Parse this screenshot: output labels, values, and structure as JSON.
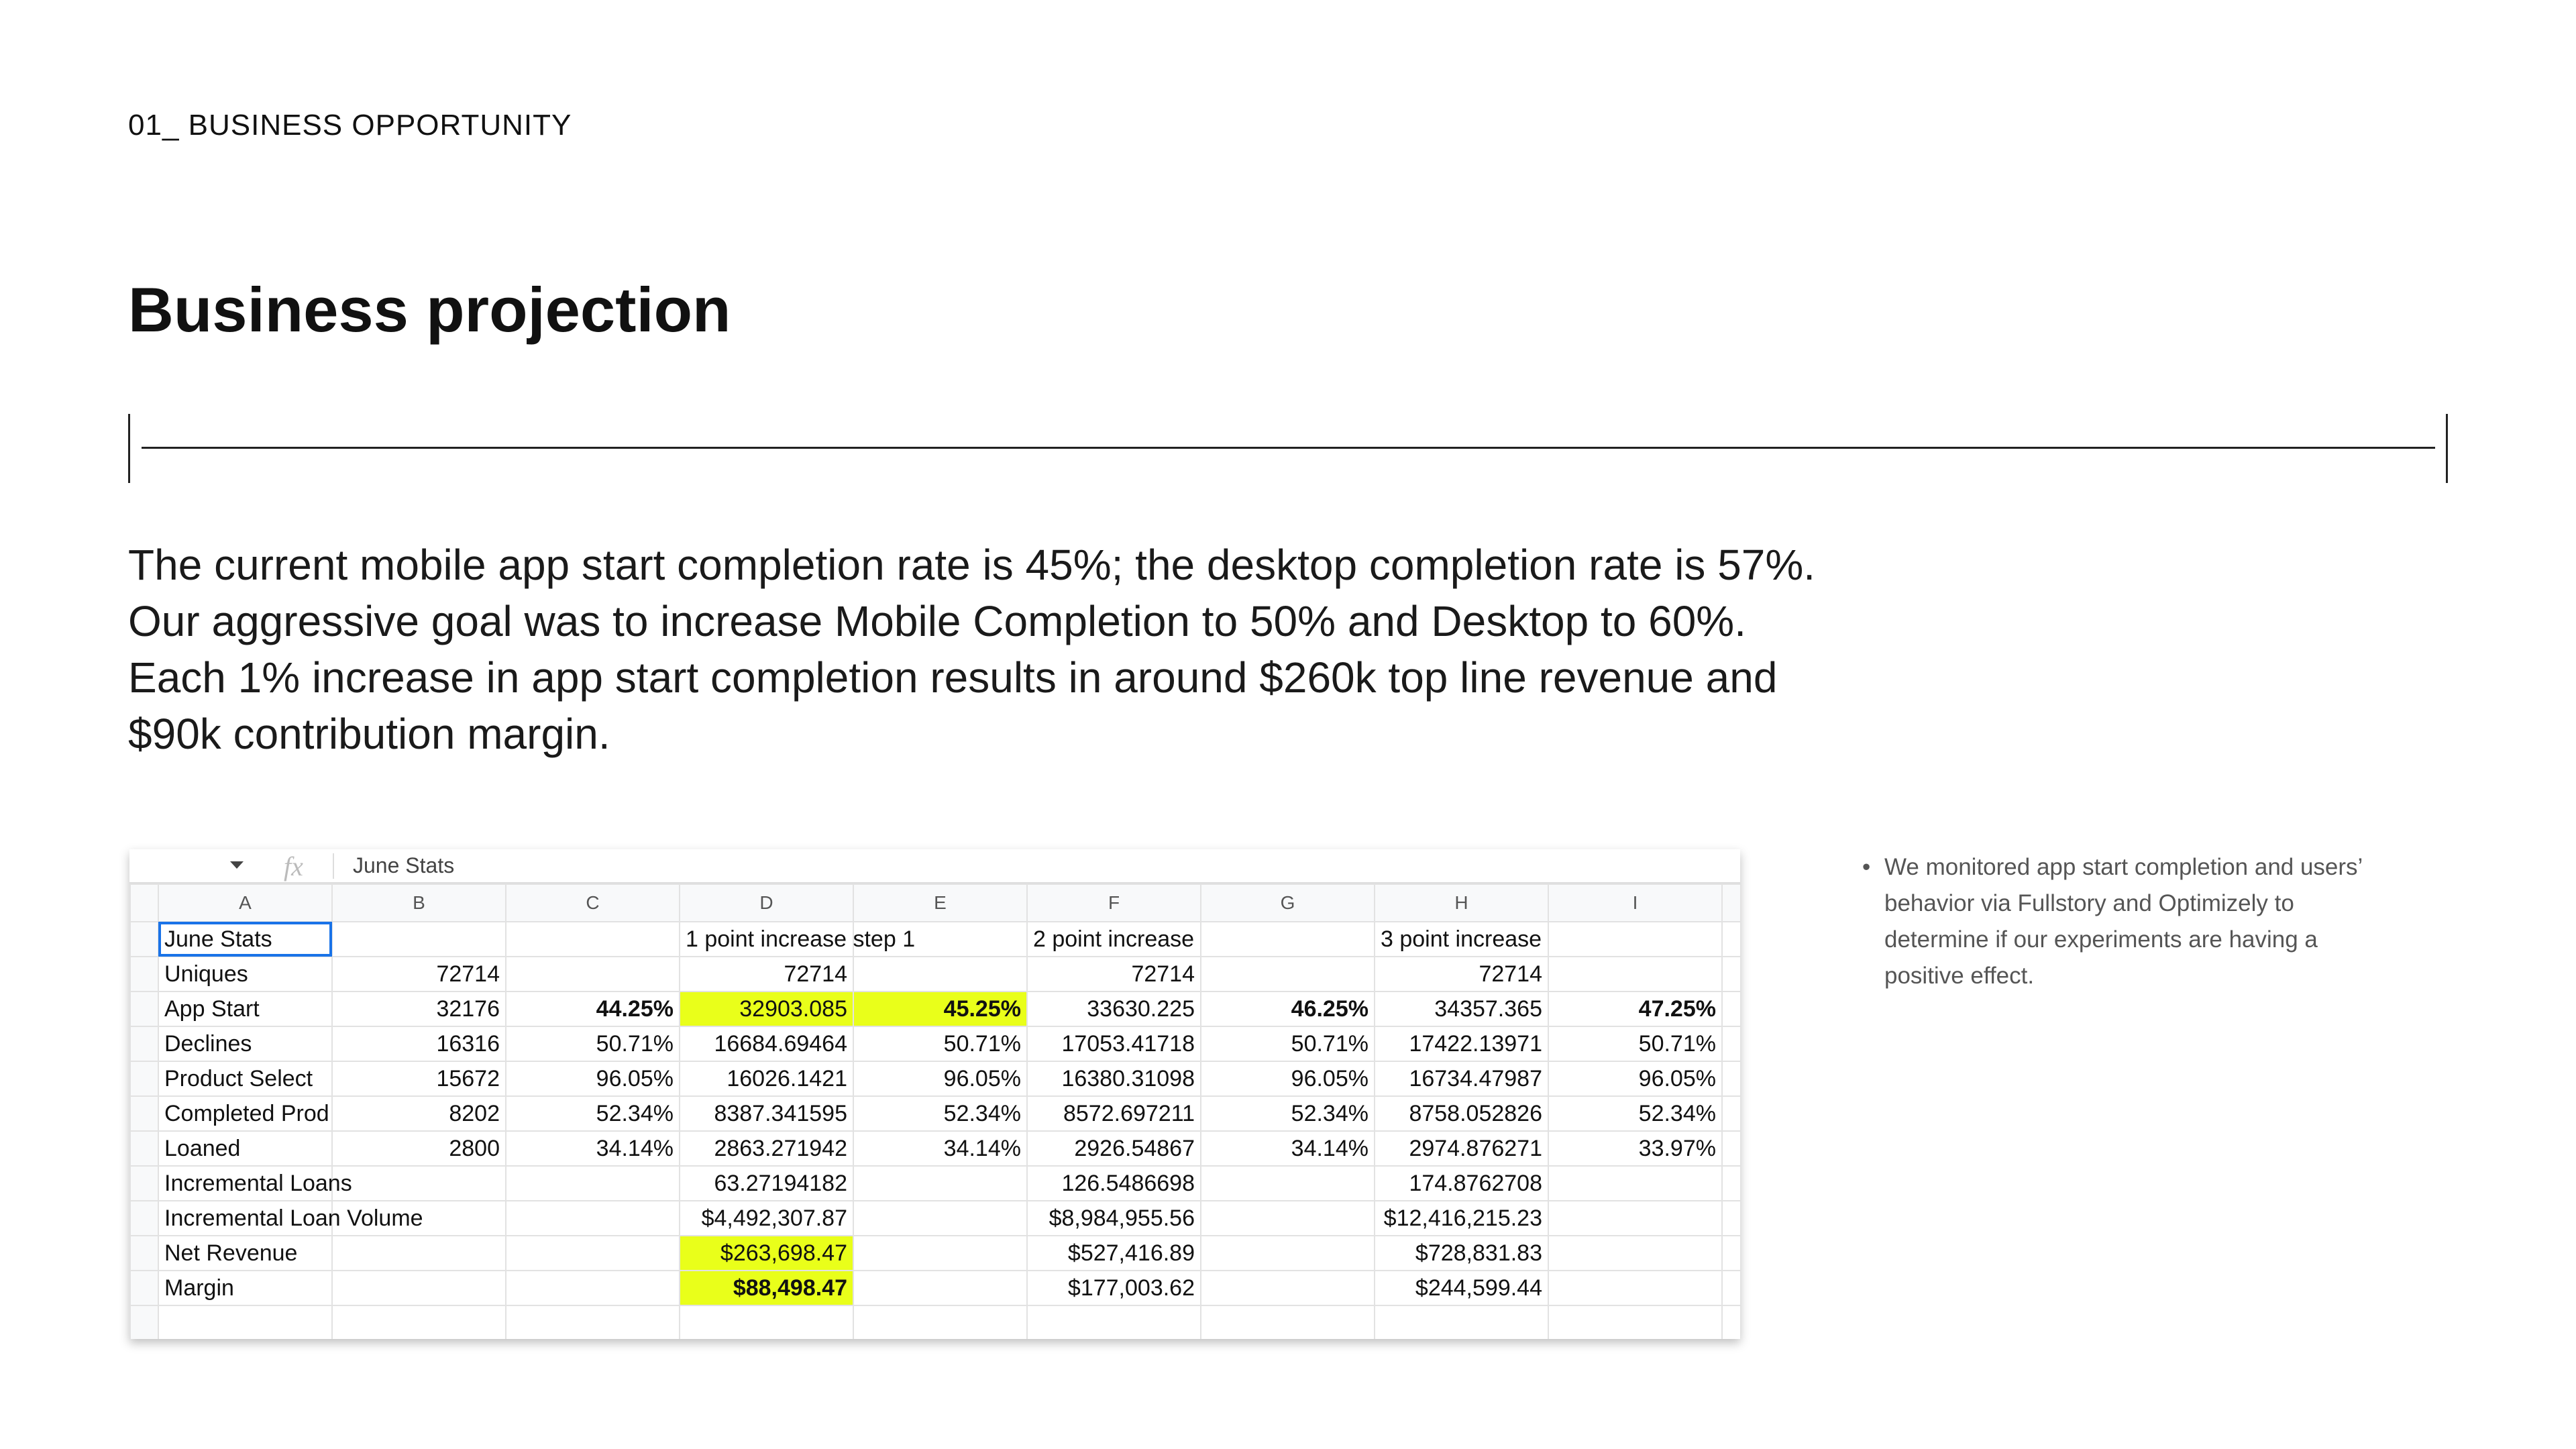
{
  "header": {
    "section": "01_ BUSINESS OPPORTUNITY",
    "title": "Business projection"
  },
  "body": "The current mobile app start completion rate is 45%; the desktop completion rate is 57%. Our aggressive goal was to increase Mobile Completion to 50% and Desktop to 60%. Each 1% increase in app start completion results in around $260k top line revenue and $90k contribution margin.",
  "spreadsheet": {
    "formula_icon": "fx",
    "formula": "June Stats",
    "columns": [
      "A",
      "B",
      "C",
      "D",
      "E",
      "F",
      "G",
      "H",
      "I"
    ],
    "rows": [
      [
        "June Stats",
        null,
        null,
        "1 point increase step 1",
        null,
        "2 point increase",
        null,
        "3 point increase",
        null
      ],
      [
        "Uniques",
        "72714",
        null,
        "72714",
        null,
        "72714",
        null,
        "72714",
        null
      ],
      [
        "App Start",
        "32176",
        "44.25%",
        "32903.085",
        "45.25%",
        "33630.225",
        "46.25%",
        "34357.365",
        "47.25%"
      ],
      [
        "Declines",
        "16316",
        "50.71%",
        "16684.69464",
        "50.71%",
        "17053.41718",
        "50.71%",
        "17422.13971",
        "50.71%"
      ],
      [
        "Product Select",
        "15672",
        "96.05%",
        "16026.1421",
        "96.05%",
        "16380.31098",
        "96.05%",
        "16734.47987",
        "96.05%"
      ],
      [
        "Completed Prod",
        "8202",
        "52.34%",
        "8387.341595",
        "52.34%",
        "8572.697211",
        "52.34%",
        "8758.052826",
        "52.34%"
      ],
      [
        "Loaned",
        "2800",
        "34.14%",
        "2863.271942",
        "34.14%",
        "2926.54867",
        "34.14%",
        "2974.876271",
        "33.97%"
      ],
      [
        "Incremental Loans",
        null,
        null,
        "63.27194182",
        null,
        "126.5486698",
        null,
        "174.8762708",
        null
      ],
      [
        "Incremental Loan Volume",
        null,
        null,
        "$4,492,307.87",
        null,
        "$8,984,955.56",
        null,
        "$12,416,215.23",
        null
      ],
      [
        "Net Revenue",
        null,
        null,
        "$263,698.47",
        null,
        "$527,416.89",
        null,
        "$728,831.83",
        null
      ],
      [
        "Margin",
        null,
        null,
        "$88,498.47",
        null,
        "$177,003.62",
        null,
        "$244,599.44",
        null
      ]
    ]
  },
  "note": "We monitored app start completion and users’ behavior via Fullstory and Optimizely to determine if our experiments are having a positive effect."
}
